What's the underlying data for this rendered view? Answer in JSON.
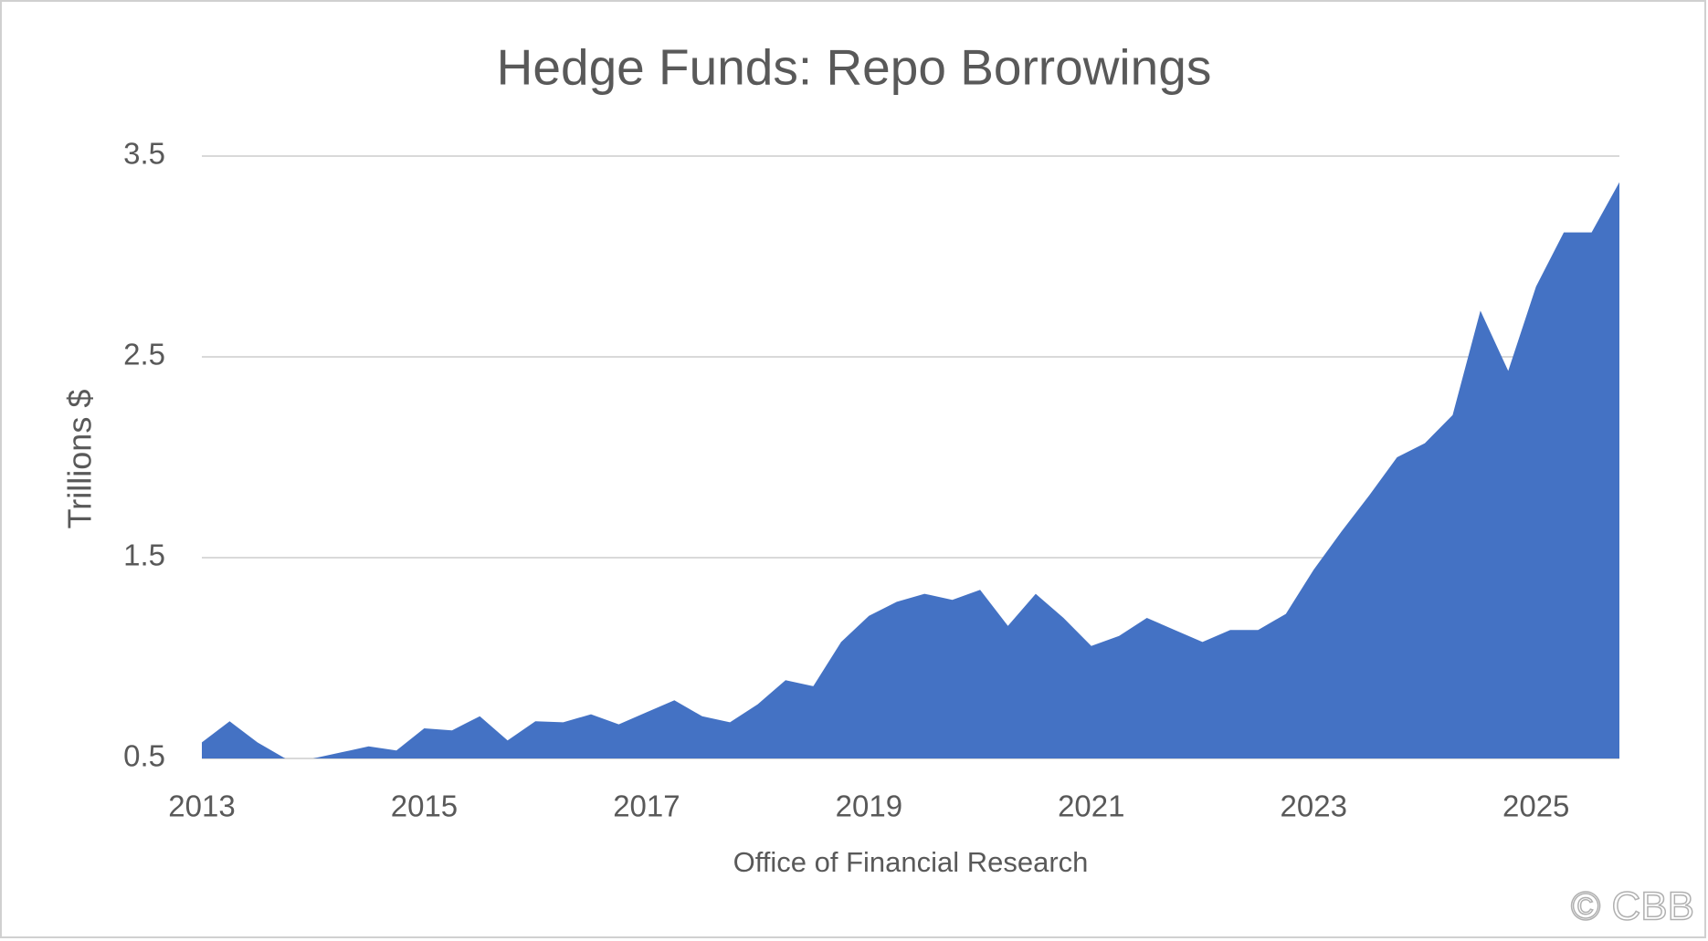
{
  "chart_data": {
    "type": "area",
    "title": "Hedge Funds: Repo Borrowings",
    "y_label": "Trillions $",
    "x_label": "Office of Financial Research",
    "watermark": "© CBB",
    "x": [
      2013,
      2013.25,
      2013.5,
      2013.75,
      2014,
      2014.25,
      2014.5,
      2014.75,
      2015,
      2015.25,
      2015.5,
      2015.75,
      2016,
      2016.25,
      2016.5,
      2016.75,
      2017,
      2017.25,
      2017.5,
      2017.75,
      2018,
      2018.25,
      2018.5,
      2018.75,
      2019,
      2019.25,
      2019.5,
      2019.75,
      2020,
      2020.25,
      2020.5,
      2020.75,
      2021,
      2021.25,
      2021.5,
      2021.75,
      2022,
      2022.25,
      2022.5,
      2022.75,
      2023,
      2023.25,
      2023.5,
      2023.75,
      2024,
      2024.25,
      2024.5,
      2024.75,
      2025,
      2025.25,
      2025.5,
      2025.75
    ],
    "series": [
      {
        "name": "Repo Borrowings",
        "color": "#4472c4",
        "values": [
          0.58,
          0.685,
          0.58,
          0.5,
          0.5,
          0.53,
          0.56,
          0.54,
          0.65,
          0.64,
          0.71,
          0.59,
          0.685,
          0.68,
          0.72,
          0.67,
          0.73,
          0.79,
          0.71,
          0.68,
          0.77,
          0.89,
          0.86,
          1.08,
          1.21,
          1.28,
          1.32,
          1.29,
          1.34,
          1.16,
          1.32,
          1.2,
          1.06,
          1.11,
          1.2,
          1.14,
          1.08,
          1.14,
          1.14,
          1.22,
          1.44,
          1.63,
          1.81,
          2.0,
          2.07,
          2.21,
          2.73,
          2.43,
          2.85,
          3.12,
          3.12,
          3.37
        ]
      }
    ],
    "xlim": [
      2013,
      2025.75
    ],
    "xticks": [
      2013,
      2015,
      2017,
      2019,
      2021,
      2023,
      2025
    ],
    "ylim": [
      0.5,
      3.5
    ],
    "yticks": [
      0.5,
      1.5,
      2.5,
      3.5
    ],
    "grid": true
  }
}
